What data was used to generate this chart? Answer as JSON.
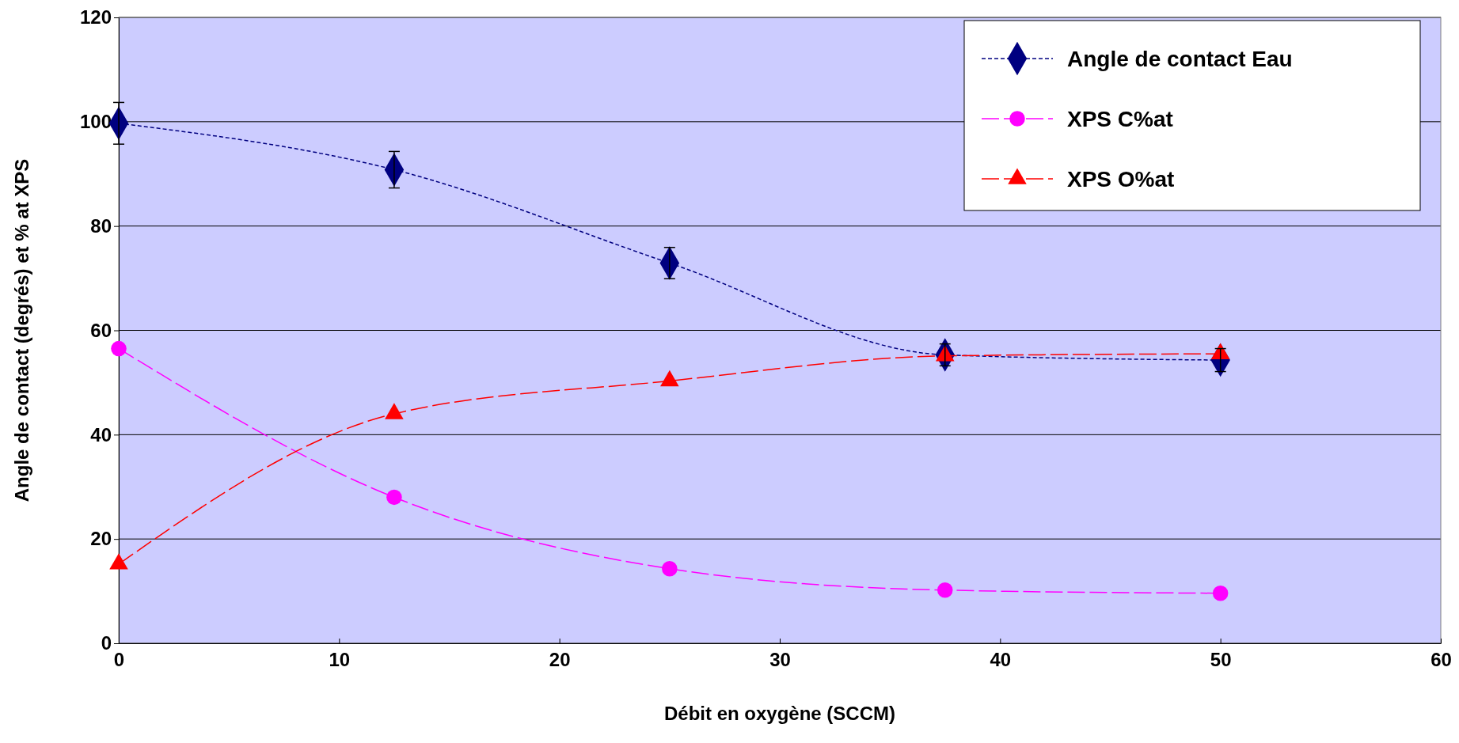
{
  "chart_data": {
    "type": "line",
    "xlabel": "Débit en oxygène (SCCM)",
    "ylabel": "Angle de contact (degrés) et % at XPS",
    "xlim": [
      0,
      60
    ],
    "xticks": [
      0,
      10,
      20,
      30,
      40,
      50,
      60
    ],
    "ylim": [
      0,
      120
    ],
    "yticks": [
      0,
      20,
      40,
      60,
      80,
      100,
      120
    ],
    "grid": "y",
    "legend": "top right",
    "series": [
      {
        "name": "Angle de contact Eau",
        "color": "#000080",
        "marker": "diamond",
        "line_style": "dotted",
        "x": [
          0,
          12.5,
          25,
          37.5,
          50
        ],
        "values": [
          99.7,
          90.8,
          72.9,
          55.3,
          54.3
        ],
        "errors": [
          4,
          3.5,
          3,
          2.1,
          2.2
        ]
      },
      {
        "name": "XPS C%at",
        "color": "#ff00ff",
        "marker": "circle",
        "line_style": "dashed",
        "x": [
          0,
          12.5,
          25,
          37.5,
          50
        ],
        "values": [
          56.5,
          28,
          14.3,
          10.2,
          9.6
        ]
      },
      {
        "name": "XPS O%at",
        "color": "#ff0000",
        "marker": "triangle",
        "line_style": "dashed",
        "x": [
          0,
          12.5,
          25,
          37.5,
          50
        ],
        "values": [
          15.2,
          44,
          50.3,
          55.1,
          55.5
        ]
      }
    ]
  }
}
